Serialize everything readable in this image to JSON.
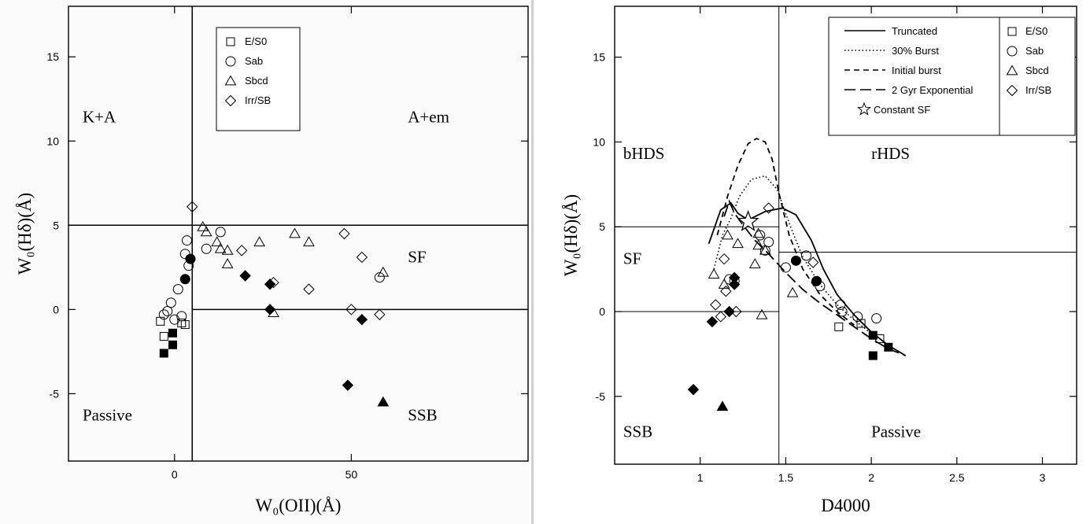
{
  "chart_data": [
    {
      "type": "scatter",
      "xlabel": "W₀(OII)(Å)",
      "ylabel": "W₀(Hδ)(Å)",
      "xlim": [
        -30,
        100
      ],
      "ylim": [
        -9,
        18
      ],
      "xticks": [
        0,
        50
      ],
      "yticks": [
        -5,
        0,
        5,
        10,
        15
      ],
      "grid": false,
      "legend_position": "top-center",
      "legend": [
        {
          "symbol": "square",
          "label": "E/S0"
        },
        {
          "symbol": "circle",
          "label": "Sab"
        },
        {
          "symbol": "triangle",
          "label": "Sbcd"
        },
        {
          "symbol": "diamond",
          "label": "Irr/SB"
        }
      ],
      "region_labels": [
        {
          "text": "K+A",
          "x": -26,
          "y": 11.1
        },
        {
          "text": "A+em",
          "x": 66,
          "y": 11.1
        },
        {
          "text": "SF",
          "x": 66,
          "y": 2.8
        },
        {
          "text": "Passive",
          "x": -26,
          "y": -6.6
        },
        {
          "text": "SSB",
          "x": 66,
          "y": -6.6
        }
      ],
      "divider_lines": [
        {
          "x1": 5,
          "y1": -9,
          "x2": 5,
          "y2": 18
        },
        {
          "x1": -30,
          "y1": 5,
          "x2": 100,
          "y2": 5
        },
        {
          "x1": 5,
          "y1": 0,
          "x2": 100,
          "y2": 0
        }
      ],
      "series": [
        {
          "name": "E/S0",
          "symbol": "square",
          "filled": false,
          "points": [
            [
              -4,
              -0.7
            ],
            [
              -3,
              -1.6
            ],
            [
              2,
              -0.8
            ],
            [
              3,
              -0.9
            ]
          ]
        },
        {
          "name": "E/S0",
          "symbol": "square",
          "filled": true,
          "points": [
            [
              -3,
              -2.6
            ],
            [
              -0.5,
              -2.1
            ],
            [
              -0.5,
              -1.4
            ]
          ]
        },
        {
          "name": "Sab",
          "symbol": "circle",
          "filled": false,
          "points": [
            [
              -3,
              -0.3
            ],
            [
              -2,
              -0.1
            ],
            [
              -1,
              0.4
            ],
            [
              0,
              -0.6
            ],
            [
              1,
              1.2
            ],
            [
              2,
              -0.4
            ],
            [
              3,
              3.3
            ],
            [
              3.5,
              4.1
            ],
            [
              4,
              2.6
            ],
            [
              9,
              3.6
            ],
            [
              13,
              4.6
            ],
            [
              58,
              1.9
            ]
          ]
        },
        {
          "name": "Sab",
          "symbol": "circle",
          "filled": true,
          "points": [
            [
              3,
              1.8
            ],
            [
              4.5,
              3.0
            ]
          ]
        },
        {
          "name": "Sbcd",
          "symbol": "triangle",
          "filled": false,
          "points": [
            [
              8,
              4.9
            ],
            [
              9,
              4.6
            ],
            [
              12,
              4.0
            ],
            [
              13,
              3.6
            ],
            [
              15,
              3.5
            ],
            [
              15,
              2.7
            ],
            [
              24,
              4.0
            ],
            [
              28,
              -0.2
            ],
            [
              34,
              4.5
            ],
            [
              38,
              4.0
            ],
            [
              59,
              2.2
            ]
          ]
        },
        {
          "name": "Sbcd",
          "symbol": "triangle",
          "filled": true,
          "points": [
            [
              59,
              -5.5
            ]
          ]
        },
        {
          "name": "Irr/SB",
          "symbol": "diamond",
          "filled": false,
          "points": [
            [
              5,
              6.1
            ],
            [
              19,
              3.5
            ],
            [
              28,
              1.6
            ],
            [
              38,
              1.2
            ],
            [
              48,
              4.5
            ],
            [
              50,
              0.0
            ],
            [
              53,
              3.1
            ],
            [
              58,
              -0.3
            ]
          ]
        },
        {
          "name": "Irr/SB",
          "symbol": "diamond",
          "filled": true,
          "points": [
            [
              20,
              2.0
            ],
            [
              27,
              0.0
            ],
            [
              27,
              1.5
            ],
            [
              49,
              -4.5
            ],
            [
              53,
              -0.6
            ]
          ]
        }
      ]
    },
    {
      "type": "scatter",
      "xlabel": "D4000",
      "ylabel": "W₀(Hδ)(Å)",
      "xlim": [
        0.5,
        3.2
      ],
      "ylim": [
        -9,
        18
      ],
      "xticks": [
        1,
        1.5,
        2,
        2.5,
        3
      ],
      "yticks": [
        -5,
        0,
        5,
        10,
        15
      ],
      "grid": false,
      "legend_position": "top-right",
      "legend": [
        {
          "symbol": "square",
          "label": "E/S0"
        },
        {
          "symbol": "circle",
          "label": "Sab"
        },
        {
          "symbol": "triangle",
          "label": "Sbcd"
        },
        {
          "symbol": "diamond",
          "label": "Irr/SB"
        }
      ],
      "model_legend": [
        {
          "style": "solid",
          "label": "Truncated"
        },
        {
          "style": "dotted",
          "label": "30% Burst"
        },
        {
          "style": "dashed",
          "label": "Initial burst"
        },
        {
          "style": "longdash",
          "label": "2 Gyr Exponential"
        },
        {
          "style": "star",
          "label": "Constant SF"
        }
      ],
      "region_labels": [
        {
          "text": "bHDS",
          "x": 0.55,
          "y": 9.0
        },
        {
          "text": "rHDS",
          "x": 2.0,
          "y": 9.0
        },
        {
          "text": "SF",
          "x": 0.55,
          "y": 2.8
        },
        {
          "text": "SSB",
          "x": 0.55,
          "y": -7.4
        },
        {
          "text": "Passive",
          "x": 2.0,
          "y": -7.4
        }
      ],
      "divider_lines": [
        {
          "x1": 1.46,
          "y1": -9,
          "x2": 1.46,
          "y2": 18
        },
        {
          "x1": 0.5,
          "y1": 5,
          "x2": 1.46,
          "y2": 5
        },
        {
          "x1": 1.46,
          "y1": 3.5,
          "x2": 3.2,
          "y2": 3.5
        },
        {
          "x1": 0.5,
          "y1": 0,
          "x2": 1.46,
          "y2": 0
        }
      ],
      "model_tracks": [
        {
          "name": "Truncated",
          "style": "solid",
          "points": [
            [
              1.05,
              4.0
            ],
            [
              1.12,
              6.0
            ],
            [
              1.18,
              6.4
            ],
            [
              1.22,
              5.8
            ],
            [
              1.28,
              5.4
            ],
            [
              1.38,
              5.9
            ],
            [
              1.48,
              6.1
            ],
            [
              1.56,
              5.7
            ],
            [
              1.65,
              4.2
            ],
            [
              1.72,
              2.5
            ],
            [
              1.8,
              1.0
            ],
            [
              1.9,
              -0.2
            ],
            [
              2.0,
              -1.2
            ],
            [
              2.1,
              -2.0
            ],
            [
              2.2,
              -2.6
            ]
          ]
        },
        {
          "name": "30% Burst",
          "style": "dotted",
          "points": [
            [
              1.08,
              2.5
            ],
            [
              1.13,
              4.5
            ],
            [
              1.18,
              5.5
            ],
            [
              1.23,
              6.8
            ],
            [
              1.3,
              7.8
            ],
            [
              1.38,
              8.0
            ],
            [
              1.45,
              7.2
            ],
            [
              1.52,
              5.2
            ],
            [
              1.6,
              3.2
            ],
            [
              1.7,
              1.6
            ],
            [
              1.8,
              0.4
            ],
            [
              1.9,
              -0.5
            ],
            [
              2.0,
              -1.3
            ]
          ]
        },
        {
          "name": "Initial burst",
          "style": "dashed",
          "points": [
            [
              1.1,
              4.5
            ],
            [
              1.16,
              6.8
            ],
            [
              1.22,
              8.6
            ],
            [
              1.28,
              9.9
            ],
            [
              1.33,
              10.2
            ],
            [
              1.38,
              10.0
            ],
            [
              1.42,
              9.0
            ],
            [
              1.46,
              7.0
            ],
            [
              1.52,
              4.5
            ],
            [
              1.6,
              2.5
            ],
            [
              1.7,
              1.0
            ],
            [
              1.8,
              0.0
            ],
            [
              1.9,
              -0.8
            ]
          ]
        },
        {
          "name": "2 Gyr Exponential",
          "style": "longdash",
          "points": [
            [
              1.14,
              5.6
            ],
            [
              1.17,
              6.5
            ],
            [
              1.2,
              5.8
            ],
            [
              1.25,
              5.1
            ],
            [
              1.32,
              4.2
            ],
            [
              1.4,
              3.4
            ],
            [
              1.5,
              2.3
            ],
            [
              1.6,
              1.3
            ],
            [
              1.7,
              0.5
            ],
            [
              1.8,
              -0.2
            ],
            [
              1.9,
              -0.9
            ],
            [
              2.0,
              -1.6
            ],
            [
              2.1,
              -2.2
            ],
            [
              2.2,
              -2.6
            ]
          ]
        }
      ],
      "constant_sf_star": [
        1.28,
        5.3
      ],
      "series": [
        {
          "name": "E/S0",
          "symbol": "square",
          "filled": false,
          "points": [
            [
              1.81,
              -0.9
            ],
            [
              1.94,
              -0.7
            ],
            [
              2.05,
              -1.6
            ]
          ]
        },
        {
          "name": "E/S0",
          "symbol": "square",
          "filled": true,
          "points": [
            [
              2.01,
              -2.6
            ],
            [
              2.01,
              -1.4
            ],
            [
              2.1,
              -2.1
            ]
          ]
        },
        {
          "name": "Sab",
          "symbol": "circle",
          "filled": false,
          "points": [
            [
              1.17,
              1.9
            ],
            [
              1.2,
              1.8
            ],
            [
              1.35,
              4.5
            ],
            [
              1.38,
              3.6
            ],
            [
              1.4,
              4.1
            ],
            [
              1.5,
              2.6
            ],
            [
              1.62,
              3.3
            ],
            [
              1.7,
              1.5
            ],
            [
              1.82,
              0.4
            ],
            [
              1.83,
              0.0
            ],
            [
              1.92,
              -0.3
            ],
            [
              2.03,
              -0.4
            ]
          ]
        },
        {
          "name": "Sab",
          "symbol": "circle",
          "filled": true,
          "points": [
            [
              1.56,
              3.0
            ],
            [
              1.68,
              1.8
            ]
          ]
        },
        {
          "name": "Sbcd",
          "symbol": "triangle",
          "filled": false,
          "points": [
            [
              1.08,
              2.2
            ],
            [
              1.14,
              1.6
            ],
            [
              1.16,
              4.5
            ],
            [
              1.22,
              4.0
            ],
            [
              1.32,
              2.8
            ],
            [
              1.34,
              4.6
            ],
            [
              1.34,
              3.9
            ],
            [
              1.36,
              -0.2
            ],
            [
              1.38,
              3.6
            ],
            [
              1.54,
              1.1
            ]
          ]
        },
        {
          "name": "Sbcd",
          "symbol": "triangle",
          "filled": true,
          "points": [
            [
              1.13,
              -5.6
            ]
          ]
        },
        {
          "name": "Irr/SB",
          "symbol": "diamond",
          "filled": false,
          "points": [
            [
              1.09,
              0.4
            ],
            [
              1.12,
              -0.3
            ],
            [
              1.14,
              3.1
            ],
            [
              1.15,
              1.2
            ],
            [
              1.21,
              0.0
            ],
            [
              1.4,
              6.1
            ],
            [
              1.66,
              2.9
            ]
          ]
        },
        {
          "name": "Irr/SB",
          "symbol": "diamond",
          "filled": true,
          "points": [
            [
              0.96,
              -4.6
            ],
            [
              1.07,
              -0.6
            ],
            [
              1.17,
              0.0
            ],
            [
              1.2,
              1.6
            ],
            [
              1.2,
              2.0
            ]
          ]
        }
      ]
    }
  ]
}
